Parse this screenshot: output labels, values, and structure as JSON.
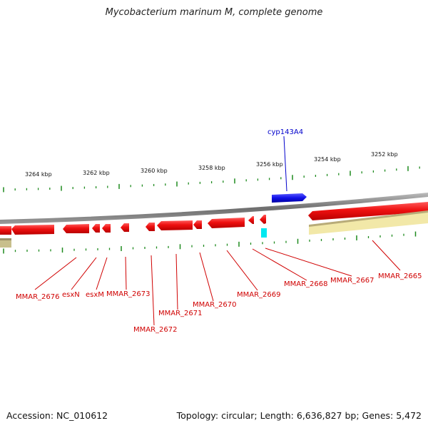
{
  "title": "Mycobacterium marinum M, complete genome",
  "footer": {
    "accession": "Accession: NC_010612",
    "summary": "Topology: circular; Length: 6,636,827 bp; Genes: 5,472"
  },
  "colors": {
    "backbone": "#808080",
    "forward_gene": "#1010e0",
    "reverse_gene": "#e81010",
    "reverse_label": "#d00000",
    "forward_label": "#0000cc",
    "rna": "#00e8f0",
    "tick": "#1e8a1e",
    "repeat_light": "#f2e8a8",
    "repeat_dark": "#b8ab78"
  },
  "axis": {
    "labels": [
      "3264 kbp",
      "3262 kbp",
      "3260 kbp",
      "3258 kbp",
      "3256 kbp",
      "3254 kbp",
      "3252 kbp"
    ]
  },
  "genes": [
    {
      "name": "cyp143A4",
      "strand": "forward"
    },
    {
      "name": "MMAR_2676",
      "strand": "reverse"
    },
    {
      "name": "esxN",
      "strand": "reverse"
    },
    {
      "name": "esxM",
      "strand": "reverse"
    },
    {
      "name": "MMAR_2673",
      "strand": "reverse"
    },
    {
      "name": "MMAR_2672",
      "strand": "reverse"
    },
    {
      "name": "MMAR_2671",
      "strand": "reverse"
    },
    {
      "name": "MMAR_2670",
      "strand": "reverse"
    },
    {
      "name": "MMAR_2669",
      "strand": "reverse"
    },
    {
      "name": "MMAR_2668",
      "strand": "reverse"
    },
    {
      "name": "MMAR_2667",
      "strand": "reverse"
    },
    {
      "name": "MMAR_2665",
      "strand": "reverse"
    }
  ]
}
